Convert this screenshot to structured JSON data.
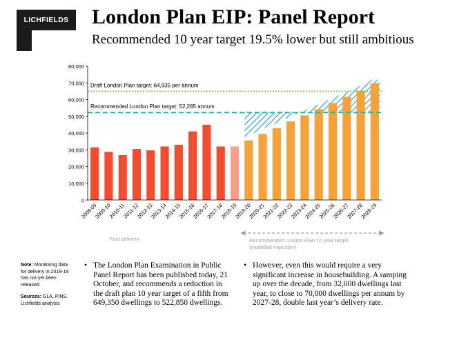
{
  "header": {
    "logo_text": "LICHFIELDS",
    "title": "London Plan EIP: Panel Report",
    "subtitle": "Recommended 10 year target 19.5% lower but still ambitious"
  },
  "chart_data": {
    "type": "bar",
    "categories": [
      "2008-09",
      "2009-10",
      "2010-11",
      "2011-12",
      "2012-13",
      "2013-14",
      "2014-15",
      "2015-16",
      "2016-17",
      "2017-18",
      "2018-19",
      "2019-20",
      "2020-21",
      "2021-22",
      "2022-23",
      "2023-24",
      "2024-25",
      "2025-26",
      "2026-27",
      "2027-28",
      "2028-29"
    ],
    "values": [
      31500,
      28800,
      26800,
      30500,
      29700,
      32000,
      33000,
      41000,
      45000,
      32000,
      32000,
      35600,
      39500,
      43000,
      47000,
      50600,
      54300,
      58000,
      61700,
      65400,
      69800
    ],
    "groups": [
      "past",
      "past",
      "past",
      "past",
      "past",
      "past",
      "past",
      "past",
      "past",
      "past",
      "unconfirmed",
      "proj",
      "proj",
      "proj",
      "proj",
      "proj",
      "proj",
      "proj",
      "proj",
      "proj",
      "proj"
    ],
    "ylim": [
      0,
      80000
    ],
    "yticks": [
      "0",
      "10,000",
      "20,000",
      "30,000",
      "40,000",
      "50,000",
      "60,000",
      "70,000",
      "80,000"
    ],
    "grid": false,
    "reference_lines": [
      {
        "label": "Draft London Plan target: 64,935 per annum",
        "value": 64935,
        "color": "#8fd14f"
      },
      {
        "label": "Recommended London Plan target: 52,285 annum",
        "value": 52285,
        "color": "#2eb5a0"
      }
    ],
    "colors": {
      "past": "#f04e2e",
      "unconfirmed": "#f7a08c",
      "proj": "#f7a13b",
      "hatch": "#2aa6cf"
    },
    "annotations": {
      "past": "Past delivery",
      "projection_line1": "Recommended  London Plan 10 year target",
      "projection_line2": "(modelled trajectory)"
    }
  },
  "notes": {
    "note_label": "Note:",
    "note_text": "Monitoring data for delivery in 2018-19 has not yet been released.",
    "sources_label": "Sources:",
    "sources_text": "GLA, PINS, Lichfields analysis"
  },
  "bullets": {
    "left": "The London Plan Examination in Public Panel Report has been published today, 21 October, and recommends a reduction in the draft plan 10 year target of a fifth from 649,350 dwellings to 522,850 dwellings.",
    "right": "However, even this would require a very significant increase in housebuilding. A ramping up over the decade, from 32,000 dwellings last year, to close to 70,000 dwellings per annum by 2027-28, double last year’s delivery rate."
  }
}
